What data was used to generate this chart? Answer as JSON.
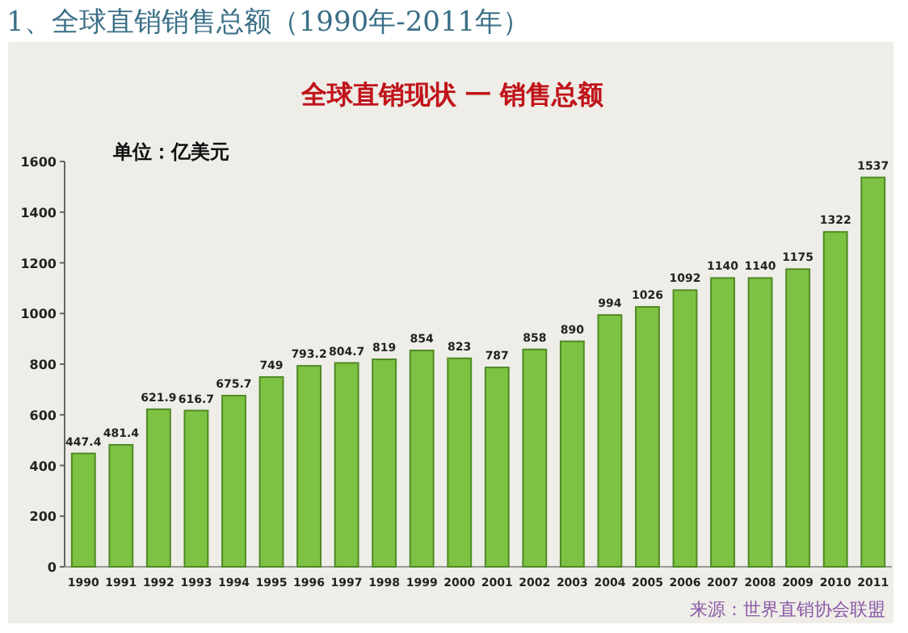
{
  "chart_data": {
    "type": "bar",
    "title": "1、全球直销销售总额（1990年-2011年）",
    "subtitle": "全球直销现状 一 销售总额",
    "categories": [
      "1990",
      "1991",
      "1992",
      "1993",
      "1994",
      "1995",
      "1996",
      "1997",
      "1998",
      "1999",
      "2000",
      "2001",
      "2002",
      "2003",
      "2004",
      "2005",
      "2006",
      "2007",
      "2008",
      "2009",
      "2010",
      "2011"
    ],
    "values": [
      447.4,
      481.4,
      621.9,
      616.7,
      675.7,
      749,
      793.2,
      804.7,
      819,
      854,
      823,
      787,
      858,
      890,
      994,
      1026,
      1092,
      1140,
      1140,
      1175,
      1322,
      1537
    ],
    "color": "#7dc242",
    "ylim": [
      0,
      1600
    ],
    "yticks": [
      0,
      200,
      400,
      600,
      800,
      1000,
      1200,
      1400,
      1600
    ],
    "data_labels": true,
    "annotations": [
      "单位：亿美元",
      "来源：世界直销协会联盟"
    ]
  }
}
